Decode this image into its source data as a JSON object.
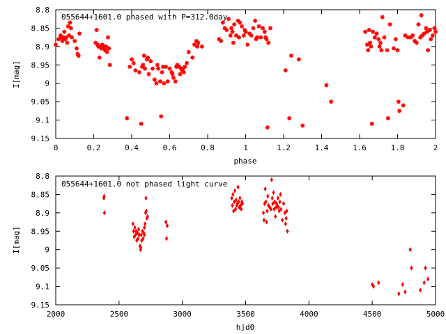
{
  "chart_data": [
    {
      "type": "scatter",
      "title": "055644+1601.0 phased with P=312.0day",
      "xlabel": "phase",
      "ylabel": "I[mag]",
      "xlim": [
        0,
        2
      ],
      "ylim": [
        8.8,
        9.15
      ],
      "y_inverted": true,
      "x_ticks": [
        "0",
        "0.2",
        "0.4",
        "0.6",
        "0.8",
        "1",
        "1.2",
        "1.4",
        "1.6",
        "1.8",
        "2"
      ],
      "y_ticks": [
        "8.8",
        "8.85",
        "8.9",
        "8.95",
        "9",
        "9.05",
        "9.1",
        "9.15"
      ],
      "marker": "star",
      "color": "#ff0000",
      "grid": false,
      "points": [
        [
          0.0,
          8.895
        ],
        [
          0.015,
          8.88
        ],
        [
          0.025,
          8.87
        ],
        [
          0.03,
          8.875
        ],
        [
          0.035,
          8.885
        ],
        [
          0.04,
          8.875
        ],
        [
          0.045,
          8.86
        ],
        [
          0.05,
          8.88
        ],
        [
          0.055,
          8.875
        ],
        [
          0.06,
          8.89
        ],
        [
          0.065,
          8.845
        ],
        [
          0.07,
          8.87
        ],
        [
          0.075,
          8.835
        ],
        [
          0.08,
          8.85
        ],
        [
          0.085,
          8.875
        ],
        [
          0.1,
          8.885
        ],
        [
          0.11,
          8.905
        ],
        [
          0.115,
          8.92
        ],
        [
          0.12,
          8.925
        ],
        [
          0.125,
          8.865
        ],
        [
          0.21,
          8.89
        ],
        [
          0.215,
          8.855
        ],
        [
          0.22,
          8.895
        ],
        [
          0.225,
          8.9
        ],
        [
          0.23,
          8.93
        ],
        [
          0.235,
          8.9
        ],
        [
          0.24,
          8.905
        ],
        [
          0.245,
          8.895
        ],
        [
          0.25,
          8.905
        ],
        [
          0.255,
          8.9
        ],
        [
          0.26,
          8.91
        ],
        [
          0.265,
          8.9
        ],
        [
          0.27,
          8.915
        ],
        [
          0.275,
          8.875
        ],
        [
          0.28,
          8.905
        ],
        [
          0.285,
          8.95
        ],
        [
          0.375,
          9.095
        ],
        [
          0.39,
          8.955
        ],
        [
          0.4,
          8.935
        ],
        [
          0.41,
          8.945
        ],
        [
          0.42,
          8.965
        ],
        [
          0.44,
          8.97
        ],
        [
          0.45,
          9.11
        ],
        [
          0.455,
          8.955
        ],
        [
          0.46,
          8.95
        ],
        [
          0.465,
          8.925
        ],
        [
          0.47,
          8.96
        ],
        [
          0.48,
          8.935
        ],
        [
          0.485,
          8.93
        ],
        [
          0.49,
          8.975
        ],
        [
          0.5,
          8.94
        ],
        [
          0.51,
          8.96
        ],
        [
          0.52,
          8.99
        ],
        [
          0.53,
          9.0
        ],
        [
          0.535,
          8.95
        ],
        [
          0.54,
          8.96
        ],
        [
          0.55,
          8.995
        ],
        [
          0.555,
          9.09
        ],
        [
          0.56,
          8.97
        ],
        [
          0.565,
          8.955
        ],
        [
          0.57,
          9.0
        ],
        [
          0.58,
          8.955
        ],
        [
          0.59,
          8.995
        ],
        [
          0.6,
          8.96
        ],
        [
          0.61,
          8.97
        ],
        [
          0.615,
          8.975
        ],
        [
          0.62,
          8.985
        ],
        [
          0.63,
          8.995
        ],
        [
          0.635,
          8.955
        ],
        [
          0.64,
          8.95
        ],
        [
          0.65,
          8.955
        ],
        [
          0.655,
          8.975
        ],
        [
          0.66,
          8.96
        ],
        [
          0.665,
          8.965
        ],
        [
          0.67,
          8.96
        ],
        [
          0.675,
          8.97
        ],
        [
          0.68,
          8.955
        ],
        [
          0.69,
          8.945
        ],
        [
          0.7,
          8.915
        ],
        [
          0.72,
          8.93
        ],
        [
          0.73,
          8.895
        ],
        [
          0.74,
          8.885
        ],
        [
          0.745,
          8.9
        ],
        [
          0.75,
          8.89
        ],
        [
          0.77,
          8.9
        ],
        [
          0.86,
          8.88
        ],
        [
          0.87,
          8.885
        ],
        [
          0.88,
          8.835
        ],
        [
          0.89,
          8.85
        ],
        [
          0.9,
          8.855
        ],
        [
          0.91,
          8.825
        ],
        [
          0.92,
          8.87
        ],
        [
          0.925,
          8.85
        ],
        [
          0.93,
          8.86
        ],
        [
          0.935,
          8.89
        ],
        [
          0.94,
          8.84
        ],
        [
          0.95,
          8.87
        ],
        [
          0.96,
          8.83
        ],
        [
          0.965,
          8.875
        ],
        [
          0.97,
          8.835
        ],
        [
          0.98,
          8.845
        ],
        [
          0.99,
          8.87
        ],
        [
          0.995,
          8.855
        ],
        [
          1.0,
          8.86
        ],
        [
          1.01,
          8.895
        ],
        [
          1.02,
          8.865
        ],
        [
          1.03,
          8.87
        ],
        [
          1.04,
          8.85
        ],
        [
          1.05,
          8.83
        ],
        [
          1.055,
          8.88
        ],
        [
          1.06,
          8.875
        ],
        [
          1.07,
          8.845
        ],
        [
          1.08,
          8.875
        ],
        [
          1.09,
          8.85
        ],
        [
          1.1,
          8.86
        ],
        [
          1.105,
          8.875
        ],
        [
          1.11,
          8.88
        ],
        [
          1.115,
          9.12
        ],
        [
          1.12,
          8.89
        ],
        [
          1.13,
          8.85
        ],
        [
          1.21,
          8.965
        ],
        [
          1.23,
          9.095
        ],
        [
          1.24,
          8.925
        ],
        [
          1.28,
          8.935
        ],
        [
          1.3,
          9.115
        ],
        [
          1.425,
          9.005
        ],
        [
          1.45,
          9.05
        ],
        [
          1.63,
          8.86
        ],
        [
          1.64,
          8.895
        ],
        [
          1.645,
          8.91
        ],
        [
          1.65,
          8.855
        ],
        [
          1.655,
          8.89
        ],
        [
          1.66,
          8.9
        ],
        [
          1.665,
          9.11
        ],
        [
          1.67,
          8.86
        ],
        [
          1.68,
          8.875
        ],
        [
          1.69,
          8.865
        ],
        [
          1.7,
          8.88
        ],
        [
          1.705,
          8.9
        ],
        [
          1.71,
          8.89
        ],
        [
          1.715,
          8.91
        ],
        [
          1.72,
          8.82
        ],
        [
          1.73,
          8.875
        ],
        [
          1.745,
          8.91
        ],
        [
          1.75,
          9.095
        ],
        [
          1.76,
          8.84
        ],
        [
          1.78,
          8.905
        ],
        [
          1.79,
          8.88
        ],
        [
          1.8,
          8.91
        ],
        [
          1.805,
          9.05
        ],
        [
          1.81,
          9.075
        ],
        [
          1.83,
          9.06
        ],
        [
          1.84,
          8.87
        ],
        [
          1.855,
          8.875
        ],
        [
          1.87,
          8.875
        ],
        [
          1.88,
          8.87
        ],
        [
          1.89,
          8.885
        ],
        [
          1.9,
          8.89
        ],
        [
          1.91,
          8.84
        ],
        [
          1.92,
          8.875
        ],
        [
          1.925,
          8.815
        ],
        [
          1.93,
          8.87
        ],
        [
          1.94,
          8.865
        ],
        [
          1.95,
          8.85
        ],
        [
          1.955,
          8.86
        ],
        [
          1.96,
          8.91
        ],
        [
          1.97,
          8.855
        ],
        [
          1.975,
          8.88
        ],
        [
          1.985,
          8.87
        ],
        [
          1.995,
          8.85
        ],
        [
          2.0,
          8.86
        ]
      ]
    },
    {
      "type": "scatter",
      "title": "055644+1601.0 not phased light curve",
      "xlabel": "hjd0",
      "ylabel": "I[mag]",
      "xlim": [
        2000,
        5000
      ],
      "ylim": [
        8.8,
        9.15
      ],
      "y_inverted": true,
      "x_ticks": [
        "2000",
        "2500",
        "3000",
        "3500",
        "4000",
        "4500",
        "5000"
      ],
      "y_ticks": [
        "8.8",
        "8.85",
        "8.9",
        "8.95",
        "9",
        "9.05",
        "9.1",
        "9.15"
      ],
      "marker": "diamond",
      "color": "#ff0000",
      "grid": false,
      "points": [
        [
          2380,
          8.86
        ],
        [
          2382,
          8.855
        ],
        [
          2385,
          8.9
        ],
        [
          2610,
          8.93
        ],
        [
          2615,
          8.95
        ],
        [
          2620,
          8.965
        ],
        [
          2625,
          8.94
        ],
        [
          2630,
          8.96
        ],
        [
          2635,
          8.95
        ],
        [
          2640,
          8.975
        ],
        [
          2645,
          8.955
        ],
        [
          2650,
          8.97
        ],
        [
          2655,
          8.945
        ],
        [
          2660,
          8.96
        ],
        [
          2665,
          8.99
        ],
        [
          2670,
          9.0
        ],
        [
          2672,
          8.995
        ],
        [
          2675,
          8.96
        ],
        [
          2680,
          8.975
        ],
        [
          2685,
          8.95
        ],
        [
          2690,
          8.97
        ],
        [
          2695,
          8.955
        ],
        [
          2700,
          8.94
        ],
        [
          2705,
          8.93
        ],
        [
          2710,
          8.9
        ],
        [
          2715,
          8.895
        ],
        [
          2720,
          8.915
        ],
        [
          2725,
          8.91
        ],
        [
          2700,
          8.96
        ],
        [
          2712,
          8.86
        ],
        [
          2870,
          8.925
        ],
        [
          2875,
          8.97
        ],
        [
          2880,
          8.935
        ],
        [
          3390,
          8.86
        ],
        [
          3395,
          8.88
        ],
        [
          3400,
          8.85
        ],
        [
          3405,
          8.895
        ],
        [
          3410,
          8.87
        ],
        [
          3415,
          8.84
        ],
        [
          3420,
          8.89
        ],
        [
          3425,
          8.865
        ],
        [
          3430,
          8.88
        ],
        [
          3435,
          8.875
        ],
        [
          3440,
          8.83
        ],
        [
          3445,
          8.87
        ],
        [
          3450,
          8.885
        ],
        [
          3455,
          8.86
        ],
        [
          3460,
          8.88
        ],
        [
          3465,
          8.89
        ],
        [
          3470,
          8.87
        ],
        [
          3475,
          8.875
        ],
        [
          3640,
          8.9
        ],
        [
          3645,
          8.92
        ],
        [
          3650,
          8.875
        ],
        [
          3655,
          8.835
        ],
        [
          3660,
          8.87
        ],
        [
          3665,
          8.925
        ],
        [
          3670,
          8.895
        ],
        [
          3675,
          8.855
        ],
        [
          3680,
          8.88
        ],
        [
          3690,
          8.885
        ],
        [
          3700,
          8.89
        ],
        [
          3705,
          8.81
        ],
        [
          3710,
          8.86
        ],
        [
          3715,
          8.875
        ],
        [
          3720,
          8.845
        ],
        [
          3725,
          8.89
        ],
        [
          3730,
          8.87
        ],
        [
          3735,
          8.91
        ],
        [
          3740,
          8.885
        ],
        [
          3745,
          8.875
        ],
        [
          3750,
          8.88
        ],
        [
          3755,
          8.86
        ],
        [
          3760,
          8.885
        ],
        [
          3765,
          8.895
        ],
        [
          3770,
          8.87
        ],
        [
          3775,
          8.85
        ],
        [
          3780,
          8.89
        ],
        [
          3790,
          8.92
        ],
        [
          3800,
          8.875
        ],
        [
          3810,
          8.9
        ],
        [
          3815,
          8.93
        ],
        [
          3820,
          8.915
        ],
        [
          3825,
          8.895
        ],
        [
          3830,
          8.95
        ],
        [
          4500,
          9.095
        ],
        [
          4510,
          9.1
        ],
        [
          4550,
          9.09
        ],
        [
          4710,
          9.12
        ],
        [
          4740,
          9.095
        ],
        [
          4760,
          9.115
        ],
        [
          4800,
          9.0
        ],
        [
          4810,
          9.05
        ],
        [
          4880,
          9.11
        ],
        [
          4910,
          9.09
        ],
        [
          4920,
          9.05
        ],
        [
          4940,
          9.08
        ]
      ]
    }
  ]
}
